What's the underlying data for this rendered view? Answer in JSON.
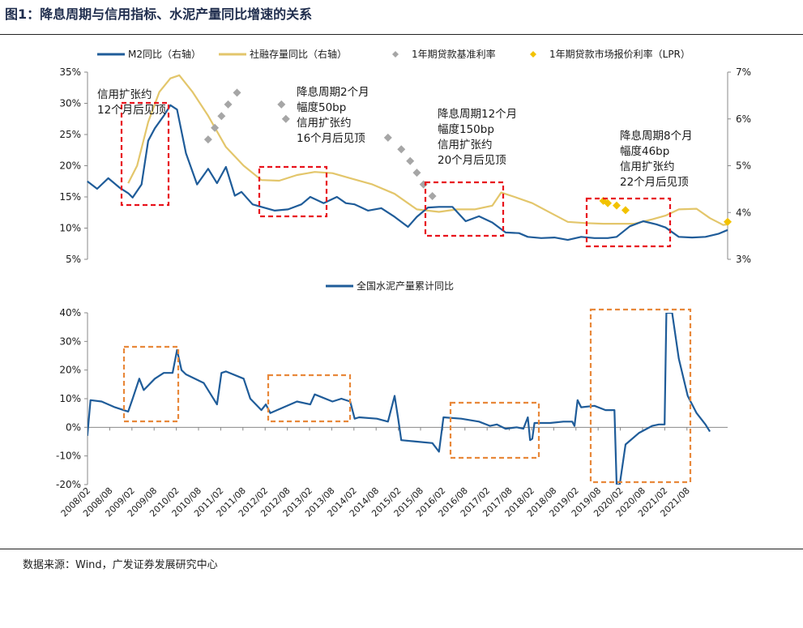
{
  "figure_title": "图1：降息周期与信用指标、水泥产量同比增速的关系",
  "source": "数据来源：Wind，广发证券发展研究中心",
  "colors": {
    "m2": "#1f5c99",
    "social": "#e3c66b",
    "benchmark": "#a6a6a6",
    "lpr": "#f2c200",
    "cement": "#1f5c99",
    "red_box": "#e8121c",
    "orange_box": "#e8883a"
  },
  "chart_data": [
    {
      "type": "line",
      "legend": [
        {
          "name": "M2同比（右轴）",
          "marker": "line"
        },
        {
          "name": "社融存量同比（右轴）",
          "marker": "line"
        },
        {
          "name": "1年期贷款基准利率",
          "marker": "diamond"
        },
        {
          "name": "1年期贷款市场报价利率（LPR）",
          "marker": "diamond"
        }
      ],
      "ylim": [
        0.05,
        0.35
      ],
      "yticks": [
        "35%",
        "30%",
        "25%",
        "20%",
        "15%",
        "10%",
        "5%"
      ],
      "y2lim": [
        3,
        7
      ],
      "y2ticks": [
        "7%",
        "6%",
        "5%",
        "4%",
        "3%"
      ],
      "series": [
        {
          "name": "M2同比（右轴）",
          "x": [
            2008.08,
            2008.3,
            2008.55,
            2008.8,
            2009.0,
            2009.1,
            2009.3,
            2009.45,
            2009.6,
            2009.8,
            2009.95,
            2010.1,
            2010.3,
            2010.55,
            2010.8,
            2011.0,
            2011.2,
            2011.4,
            2011.55,
            2011.8,
            2012.0,
            2012.3,
            2012.6,
            2012.9,
            2013.1,
            2013.4,
            2013.7,
            2013.9,
            2014.1,
            2014.4,
            2014.7,
            2015.0,
            2015.3,
            2015.5,
            2015.75,
            2016.0,
            2016.3,
            2016.6,
            2016.9,
            2017.2,
            2017.5,
            2017.8,
            2018.0,
            2018.3,
            2018.6,
            2018.9,
            2019.2,
            2019.5,
            2019.8,
            2020.0,
            2020.3,
            2020.6,
            2020.9,
            2021.1,
            2021.4,
            2021.7,
            2022.0,
            2022.3,
            2022.5
          ],
          "values": [
            0.175,
            0.163,
            0.18,
            0.165,
            0.156,
            0.149,
            0.17,
            0.24,
            0.26,
            0.28,
            0.297,
            0.29,
            0.22,
            0.17,
            0.195,
            0.172,
            0.198,
            0.152,
            0.158,
            0.138,
            0.134,
            0.128,
            0.13,
            0.138,
            0.15,
            0.14,
            0.15,
            0.14,
            0.138,
            0.128,
            0.132,
            0.118,
            0.102,
            0.118,
            0.133,
            0.134,
            0.134,
            0.111,
            0.119,
            0.109,
            0.093,
            0.092,
            0.086,
            0.084,
            0.085,
            0.081,
            0.086,
            0.084,
            0.084,
            0.086,
            0.103,
            0.111,
            0.106,
            0.101,
            0.086,
            0.085,
            0.086,
            0.091,
            0.097
          ]
        },
        {
          "name": "社融存量同比（右轴）",
          "x": [
            2009.0,
            2009.2,
            2009.45,
            2009.7,
            2009.95,
            2010.15,
            2010.45,
            2010.8,
            2011.2,
            2011.6,
            2012.0,
            2012.4,
            2012.8,
            2013.2,
            2013.6,
            2014.0,
            2014.5,
            2015.0,
            2015.5,
            2016.0,
            2016.4,
            2016.8,
            2017.2,
            2017.4,
            2017.7,
            2018.1,
            2018.5,
            2018.9,
            2019.3,
            2019.7,
            2020.0,
            2020.4,
            2020.8,
            2021.1,
            2021.4,
            2021.8,
            2022.1,
            2022.4,
            2022.5
          ],
          "values": [
            0.172,
            0.2,
            0.27,
            0.318,
            0.34,
            0.345,
            0.318,
            0.28,
            0.23,
            0.2,
            0.177,
            0.176,
            0.185,
            0.19,
            0.188,
            0.18,
            0.17,
            0.155,
            0.13,
            0.126,
            0.13,
            0.13,
            0.136,
            0.157,
            0.15,
            0.14,
            0.125,
            0.11,
            0.108,
            0.107,
            0.107,
            0.107,
            0.114,
            0.12,
            0.13,
            0.131,
            0.116,
            0.105,
            0.106
          ]
        },
        {
          "name": "1年期贷款基准利率",
          "x": [
            2010.8,
            2010.95,
            2011.1,
            2011.25,
            2011.45,
            2012.45,
            2012.55,
            2014.85,
            2015.15,
            2015.35,
            2015.5,
            2015.65,
            2015.85
          ],
          "values": [
            5.56,
            5.81,
            6.06,
            6.31,
            6.56,
            6.31,
            6.0,
            5.6,
            5.35,
            5.1,
            4.85,
            4.6,
            4.35
          ]
        },
        {
          "name": "1年期贷款市场报价利率（LPR）",
          "x": [
            2019.7,
            2019.8,
            2020.0,
            2020.2,
            2022.5
          ],
          "values": [
            4.25,
            4.2,
            4.15,
            4.05,
            3.8
          ]
        }
      ]
    },
    {
      "type": "line",
      "legend": [
        {
          "name": "全国水泥产量累计同比",
          "marker": "line"
        }
      ],
      "ylim": [
        -0.2,
        0.4
      ],
      "yticks": [
        "40%",
        "30%",
        "20%",
        "10%",
        "0%",
        "-10%",
        "-20%"
      ],
      "x_labels": [
        "2008/02",
        "2008/08",
        "2009/02",
        "2009/08",
        "2010/02",
        "2010/08",
        "2011/02",
        "2011/08",
        "2012/02",
        "2012/08",
        "2013/02",
        "2013/08",
        "2014/02",
        "2014/08",
        "2015/02",
        "2015/08",
        "2016/02",
        "2016/08",
        "2017/02",
        "2017/08",
        "2018/02",
        "2018/08",
        "2019/02",
        "2019/08",
        "2020/02",
        "2020/08",
        "2021/02",
        "2021/08"
      ],
      "series": [
        {
          "name": "全国水泥产量累计同比",
          "x": [
            2008.08,
            2008.15,
            2008.4,
            2008.7,
            2009.0,
            2009.1,
            2009.25,
            2009.35,
            2009.6,
            2009.8,
            2010.0,
            2010.1,
            2010.2,
            2010.3,
            2010.7,
            2011.0,
            2011.1,
            2011.2,
            2011.6,
            2011.75,
            2012.0,
            2012.1,
            2012.2,
            2012.5,
            2012.8,
            2013.1,
            2013.2,
            2013.6,
            2013.8,
            2014.0,
            2014.1,
            2014.2,
            2014.6,
            2014.85,
            2015.0,
            2015.08,
            2015.15,
            2015.5,
            2015.85,
            2016.0,
            2016.1,
            2016.5,
            2016.9,
            2017.15,
            2017.3,
            2017.5,
            2017.75,
            2017.9,
            2018.0,
            2018.05,
            2018.1,
            2018.15,
            2018.5,
            2018.8,
            2019.0,
            2019.05,
            2019.12,
            2019.2,
            2019.5,
            2019.75,
            2019.95,
            2020.0,
            2020.07,
            2020.2,
            2020.5,
            2020.8,
            2020.95,
            2021.08,
            2021.12,
            2021.2,
            2021.25,
            2021.4,
            2021.6,
            2021.8,
            2022.0,
            2022.1
          ],
          "values": [
            -0.03,
            0.095,
            0.09,
            0.07,
            0.055,
            0.1,
            0.17,
            0.13,
            0.17,
            0.19,
            0.19,
            0.27,
            0.2,
            0.185,
            0.155,
            0.08,
            0.19,
            0.195,
            0.17,
            0.1,
            0.06,
            0.08,
            0.05,
            0.07,
            0.09,
            0.08,
            0.115,
            0.09,
            0.1,
            0.09,
            0.03,
            0.035,
            0.03,
            0.02,
            0.11,
            0.03,
            -0.045,
            -0.05,
            -0.055,
            -0.085,
            0.035,
            0.03,
            0.02,
            0.005,
            0.01,
            -0.005,
            0.0,
            -0.005,
            0.035,
            -0.045,
            -0.04,
            0.015,
            0.015,
            0.02,
            0.02,
            0.005,
            0.095,
            0.07,
            0.075,
            0.06,
            0.06,
            -0.2,
            -0.2,
            -0.06,
            -0.02,
            0.005,
            0.01,
            0.01,
            0.4,
            0.4,
            0.4,
            0.24,
            0.11,
            0.05,
            0.01,
            -0.015
          ]
        }
      ]
    }
  ],
  "annotations": [
    {
      "text": [
        "信用扩张约",
        "12个月后见顶"
      ]
    },
    {
      "text": [
        "降息周期2个月",
        "幅度50bp",
        "信用扩张约",
        "16个月后见顶"
      ]
    },
    {
      "text": [
        "降息周期12个月",
        "幅度150bp",
        "信用扩张约",
        "20个月后见顶"
      ]
    },
    {
      "text": [
        "降息周期8个月",
        "幅度46bp",
        "信用扩张约",
        "22个月后见顶"
      ]
    }
  ]
}
